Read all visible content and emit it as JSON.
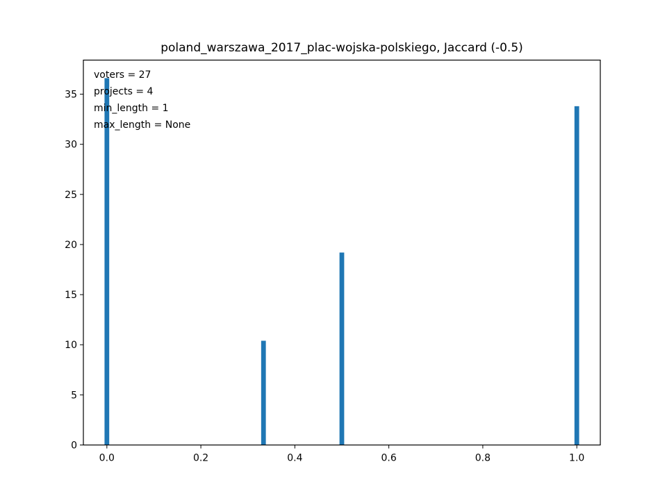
{
  "chart_data": {
    "type": "bar",
    "title": "poland_warszawa_2017_plac-wojska-polskiego, Jaccard (-0.5)",
    "xlabel": "",
    "ylabel": "",
    "x": [
      0.0,
      0.3333,
      0.5,
      1.0
    ],
    "values": [
      36.6,
      10.4,
      19.2,
      33.8
    ],
    "bar_color": "#1f77b4",
    "bar_width": 0.01,
    "xlim": [
      -0.05,
      1.05
    ],
    "ylim": [
      0,
      38.4
    ],
    "xticks": [
      0.0,
      0.2,
      0.4,
      0.6,
      0.8,
      1.0
    ],
    "xtick_labels": [
      "0.0",
      "0.2",
      "0.4",
      "0.6",
      "0.8",
      "1.0"
    ],
    "yticks": [
      0,
      5,
      10,
      15,
      20,
      25,
      30,
      35
    ],
    "ytick_labels": [
      "0",
      "5",
      "10",
      "15",
      "20",
      "25",
      "30",
      "35"
    ],
    "grid": false,
    "annotations": [
      "voters = 27",
      "projects = 4",
      "min_length = 1",
      "max_length = None"
    ]
  }
}
